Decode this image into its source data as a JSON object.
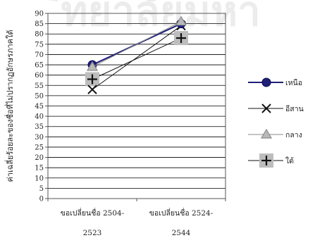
{
  "chart_data": {
    "type": "line",
    "ylabel": "ค่าเฉลี่ยร้อยละของชื่อที่ไม่ปรากฏอักษรภาคใต้",
    "ylim": [
      0,
      90
    ],
    "y_ticks": [
      0,
      5,
      10,
      15,
      20,
      25,
      30,
      35,
      40,
      45,
      50,
      55,
      60,
      65,
      70,
      75,
      80,
      85,
      90
    ],
    "grid": true,
    "legend_position": "right",
    "categories": [
      {
        "line1": "ขอเปลี่ยนชื่อ 2504-",
        "line2": "2523"
      },
      {
        "line1": "ขอเปลี่ยนชื่อ 2524-",
        "line2": "2544"
      }
    ],
    "series": [
      {
        "name": "เหนือ",
        "values": [
          65,
          85
        ],
        "marker": "circle",
        "color": "#1f1f7a",
        "line_width": 2
      },
      {
        "name": "อีสาน",
        "values": [
          53,
          84
        ],
        "marker": "x",
        "color": "#111111",
        "line_width": 1
      },
      {
        "name": "กลาง",
        "values": [
          64,
          86
        ],
        "marker": "triangle",
        "color": "#8a8a8a",
        "line_width": 1
      },
      {
        "name": "ใต้",
        "values": [
          58,
          78
        ],
        "marker": "plus-square",
        "color": "#111111",
        "line_width": 1
      }
    ]
  },
  "colors": {
    "plot_border": "#555555",
    "grid": "#000000",
    "marker_box": "#bdbdbd",
    "watermark": "#ececec"
  }
}
